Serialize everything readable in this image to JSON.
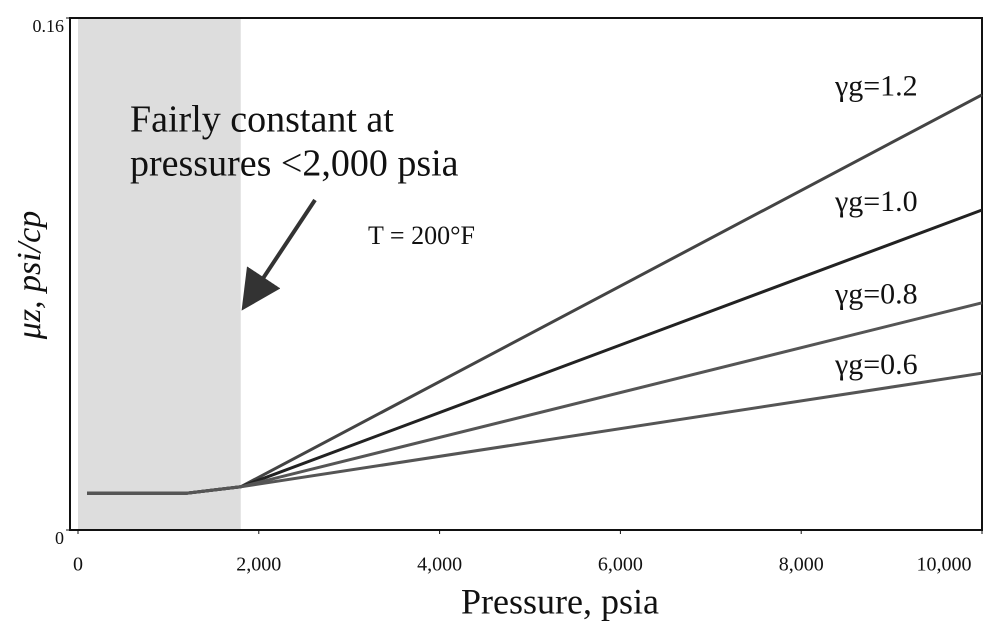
{
  "chart_data": {
    "type": "line",
    "y_label": "μz, psi/cp",
    "x_label": "Pressure, psia",
    "annotations": [
      "Fairly constant at",
      "pressures <2,000 psia",
      "T = 200°F"
    ],
    "x": [
      100,
      1200,
      1800,
      10000
    ],
    "series": [
      {
        "name": "γg=1.2",
        "color": "#444444",
        "values": [
          0.0115,
          0.0115,
          0.0135,
          0.136
        ]
      },
      {
        "name": "γg=1.0",
        "color": "#222222",
        "values": [
          0.0115,
          0.0115,
          0.0135,
          0.1
        ]
      },
      {
        "name": "γg=0.8",
        "color": "#555555",
        "values": [
          0.0115,
          0.0115,
          0.0135,
          0.071
        ]
      },
      {
        "name": "γg=0.6",
        "color": "#555555",
        "values": [
          0.0115,
          0.0115,
          0.0135,
          0.049
        ]
      }
    ],
    "xlim": [
      0,
      10000
    ],
    "xticks": [
      0,
      {
        "value": 2000,
        "label": "2,000"
      },
      {
        "value": 4000,
        "label": "4,000"
      },
      {
        "value": 6000,
        "label": "6,000"
      },
      {
        "value": 8000,
        "label": "8,000"
      },
      {
        "value": 10000,
        "label": "10,000"
      }
    ],
    "ylim": [
      0,
      0.16
    ],
    "yticks": [
      0,
      0.16
    ],
    "shaded_xrange": [
      0,
      1800
    ],
    "shade_color": "#dddddd",
    "grid": false
  }
}
